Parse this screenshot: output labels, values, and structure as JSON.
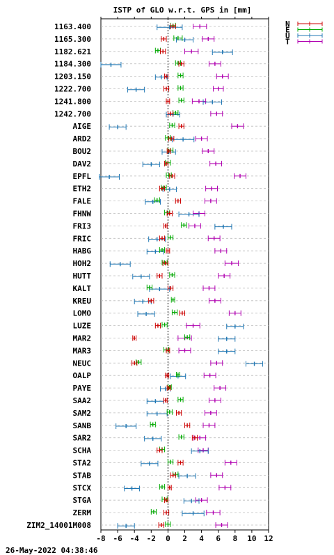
{
  "chart_data": {
    "type": "scatter",
    "title": "ISTP of GLO w.r.t. GPS in [mm]",
    "xlim": [
      -8,
      12
    ],
    "xticks": [
      -8,
      -6,
      -4,
      -2,
      0,
      2,
      4,
      6,
      8,
      10,
      12
    ],
    "grid": "horizontal dashed",
    "legend_position": "top-right",
    "footer": "26-May-2022 04:38:46",
    "series": [
      {
        "name": "N",
        "color": "#cc0000"
      },
      {
        "name": "E",
        "color": "#00aa00"
      },
      {
        "name": "U",
        "color": "#1f77b4"
      },
      {
        "name": "T",
        "color": "#b000b0"
      }
    ],
    "stations": [
      {
        "label": "1163.400",
        "N": [
          0.6,
          0.3
        ],
        "E": [
          0.6,
          0.3
        ],
        "U": [
          0.2,
          1.5
        ],
        "T": [
          3.8,
          0.8
        ]
      },
      {
        "label": "1165.300",
        "N": [
          -0.5,
          0.3
        ],
        "E": [
          1.2,
          0.5
        ],
        "U": [
          2.0,
          1.0
        ],
        "T": [
          4.8,
          0.7
        ]
      },
      {
        "label": "1182.621",
        "N": [
          -0.6,
          0.3
        ],
        "E": [
          -1.2,
          0.3
        ],
        "U": [
          6.5,
          1.2
        ],
        "T": [
          2.8,
          0.8
        ]
      },
      {
        "label": "1184.300",
        "N": [
          1.6,
          0.3
        ],
        "E": [
          1.2,
          0.3
        ],
        "U": [
          -6.8,
          1.2
        ],
        "T": [
          5.6,
          0.7
        ]
      },
      {
        "label": "1203.150",
        "N": [
          -0.2,
          0.2
        ],
        "E": [
          1.5,
          0.3
        ],
        "U": [
          -0.8,
          0.7
        ],
        "T": [
          6.5,
          0.7
        ]
      },
      {
        "label": "1222.700",
        "N": [
          -0.2,
          0.3
        ],
        "E": [
          1.5,
          0.3
        ],
        "U": [
          -3.8,
          1.0
        ],
        "T": [
          6.0,
          0.6
        ]
      },
      {
        "label": "1241.800",
        "N": [
          0.0,
          0.2
        ],
        "E": [
          1.6,
          0.3
        ],
        "U": [
          5.3,
          1.1
        ],
        "T": [
          3.7,
          0.8
        ]
      },
      {
        "label": "1242.700",
        "N": [
          0.3,
          0.3
        ],
        "E": [
          0.9,
          0.3
        ],
        "U": [
          0.6,
          0.8
        ],
        "T": [
          5.8,
          0.7
        ]
      },
      {
        "label": "AIGE",
        "N": [
          1.6,
          0.3
        ],
        "E": [
          0.5,
          0.3
        ],
        "U": [
          -6.0,
          1.0
        ],
        "T": [
          8.3,
          0.7
        ]
      },
      {
        "label": "ARD2",
        "N": [
          0.4,
          0.3
        ],
        "E": [
          0.0,
          0.3
        ],
        "U": [
          1.8,
          1.3
        ],
        "T": [
          4.0,
          0.7
        ]
      },
      {
        "label": "BOU2",
        "N": [
          0.1,
          0.2
        ],
        "E": [
          0.3,
          0.3
        ],
        "U": [
          0.1,
          0.8
        ],
        "T": [
          4.8,
          0.7
        ]
      },
      {
        "label": "DAV2",
        "N": [
          -0.2,
          0.2
        ],
        "E": [
          0.0,
          0.3
        ],
        "U": [
          -2.0,
          1.0
        ],
        "T": [
          5.7,
          0.7
        ]
      },
      {
        "label": "EPFL",
        "N": [
          0.5,
          0.3
        ],
        "E": [
          0.1,
          0.3
        ],
        "U": [
          -7.0,
          1.2
        ],
        "T": [
          8.6,
          0.7
        ]
      },
      {
        "label": "ETH2",
        "N": [
          -0.7,
          0.3
        ],
        "E": [
          -0.5,
          0.3
        ],
        "U": [
          0.2,
          0.8
        ],
        "T": [
          5.2,
          0.7
        ]
      },
      {
        "label": "FALE",
        "N": [
          1.2,
          0.3
        ],
        "E": [
          -1.3,
          0.3
        ],
        "U": [
          -1.8,
          0.9
        ],
        "T": [
          5.1,
          0.7
        ]
      },
      {
        "label": "FHNW",
        "N": [
          0.2,
          0.3
        ],
        "E": [
          -0.1,
          0.3
        ],
        "U": [
          2.5,
          1.2
        ],
        "T": [
          3.7,
          0.7
        ]
      },
      {
        "label": "FRI3",
        "N": [
          -0.3,
          0.2
        ],
        "E": [
          1.9,
          0.3
        ],
        "U": [
          6.6,
          1.0
        ],
        "T": [
          3.2,
          0.7
        ]
      },
      {
        "label": "FRIC",
        "N": [
          -0.7,
          0.3
        ],
        "E": [
          0.3,
          0.3
        ],
        "U": [
          -1.3,
          1.0
        ],
        "T": [
          5.5,
          0.7
        ]
      },
      {
        "label": "HABG",
        "N": [
          0.0,
          0.2
        ],
        "E": [
          -0.7,
          0.3
        ],
        "U": [
          -1.5,
          1.0
        ],
        "T": [
          6.3,
          0.7
        ]
      },
      {
        "label": "HOH2",
        "N": [
          -0.3,
          0.3
        ],
        "E": [
          -0.4,
          0.3
        ],
        "U": [
          -5.7,
          1.2
        ],
        "T": [
          7.6,
          0.8
        ]
      },
      {
        "label": "HUTT",
        "N": [
          -1.0,
          0.3
        ],
        "E": [
          0.5,
          0.3
        ],
        "U": [
          -3.2,
          1.0
        ],
        "T": [
          6.7,
          0.7
        ]
      },
      {
        "label": "KALT",
        "N": [
          0.3,
          0.3
        ],
        "E": [
          -2.2,
          0.3
        ],
        "U": [
          -1.0,
          1.2
        ],
        "T": [
          4.9,
          0.7
        ]
      },
      {
        "label": "KREU",
        "N": [
          -2.0,
          0.3
        ],
        "E": [
          0.6,
          0.2
        ],
        "U": [
          -3.0,
          1.0
        ],
        "T": [
          5.6,
          0.7
        ]
      },
      {
        "label": "LOMO",
        "N": [
          1.7,
          0.3
        ],
        "E": [
          0.8,
          0.3
        ],
        "U": [
          -2.6,
          1.0
        ],
        "T": [
          8.0,
          0.7
        ]
      },
      {
        "label": "LUZE",
        "N": [
          -1.2,
          0.3
        ],
        "E": [
          -0.4,
          0.3
        ],
        "U": [
          8.0,
          1.0
        ],
        "T": [
          3.0,
          0.8
        ]
      },
      {
        "label": "MAR2",
        "N": [
          -4.0,
          0.2
        ],
        "E": [
          2.3,
          0.3
        ],
        "U": [
          7.0,
          1.0
        ],
        "T": [
          2.0,
          0.8
        ]
      },
      {
        "label": "MAR3",
        "N": [
          0.0,
          0.2
        ],
        "E": [
          -0.2,
          0.3
        ],
        "U": [
          7.0,
          1.0
        ],
        "T": [
          2.0,
          0.7
        ]
      },
      {
        "label": "NEUC",
        "N": [
          -4.0,
          0.3
        ],
        "E": [
          -3.5,
          0.3
        ],
        "U": [
          10.3,
          1.0
        ],
        "T": [
          5.8,
          0.7
        ]
      },
      {
        "label": "OALP",
        "N": [
          -0.1,
          0.2
        ],
        "E": [
          1.2,
          0.2
        ],
        "U": [
          1.2,
          0.9
        ],
        "T": [
          5.0,
          0.7
        ]
      },
      {
        "label": "PAYE",
        "N": [
          0.1,
          0.2
        ],
        "E": [
          0.2,
          0.2
        ],
        "U": [
          -0.3,
          0.6
        ],
        "T": [
          6.2,
          0.7
        ]
      },
      {
        "label": "SAA2",
        "N": [
          -0.3,
          0.2
        ],
        "E": [
          1.5,
          0.3
        ],
        "U": [
          -1.5,
          1.0
        ],
        "T": [
          5.6,
          0.7
        ]
      },
      {
        "label": "SAM2",
        "N": [
          1.3,
          0.3
        ],
        "E": [
          0.2,
          0.3
        ],
        "U": [
          -1.3,
          1.2
        ],
        "T": [
          5.1,
          0.7
        ]
      },
      {
        "label": "SANB",
        "N": [
          2.3,
          0.3
        ],
        "E": [
          -1.8,
          0.3
        ],
        "U": [
          -5.0,
          1.2
        ],
        "T": [
          4.9,
          0.7
        ]
      },
      {
        "label": "SAR2",
        "N": [
          3.2,
          0.3
        ],
        "E": [
          1.6,
          0.3
        ],
        "U": [
          -1.8,
          1.0
        ],
        "T": [
          3.8,
          0.7
        ]
      },
      {
        "label": "SCHA",
        "N": [
          -1.0,
          0.3
        ],
        "E": [
          -0.7,
          0.3
        ],
        "U": [
          3.8,
          1.0
        ],
        "T": [
          4.2,
          0.6
        ]
      },
      {
        "label": "STA2",
        "N": [
          1.5,
          0.3
        ],
        "E": [
          0.3,
          0.3
        ],
        "U": [
          -2.2,
          1.0
        ],
        "T": [
          7.5,
          0.7
        ]
      },
      {
        "label": "STAB",
        "N": [
          0.6,
          0.3
        ],
        "E": [
          0.9,
          0.3
        ],
        "U": [
          2.3,
          1.0
        ],
        "T": [
          5.8,
          0.7
        ]
      },
      {
        "label": "STCX",
        "N": [
          0.2,
          0.2
        ],
        "E": [
          -0.7,
          0.3
        ],
        "U": [
          -4.3,
          0.9
        ],
        "T": [
          6.8,
          0.7
        ]
      },
      {
        "label": "STGA",
        "N": [
          -0.2,
          0.2
        ],
        "E": [
          -0.4,
          0.3
        ],
        "U": [
          2.8,
          0.9
        ],
        "T": [
          4.0,
          0.7
        ]
      },
      {
        "label": "ZERM",
        "N": [
          -0.2,
          0.3
        ],
        "E": [
          -1.7,
          0.3
        ],
        "U": [
          3.0,
          1.3
        ],
        "T": [
          5.4,
          0.8
        ]
      },
      {
        "label": "ZIM2_14001M008",
        "N": [
          -0.8,
          0.3
        ],
        "E": [
          0.0,
          0.3
        ],
        "U": [
          -5.0,
          1.0
        ],
        "T": [
          6.4,
          0.7
        ]
      }
    ]
  }
}
